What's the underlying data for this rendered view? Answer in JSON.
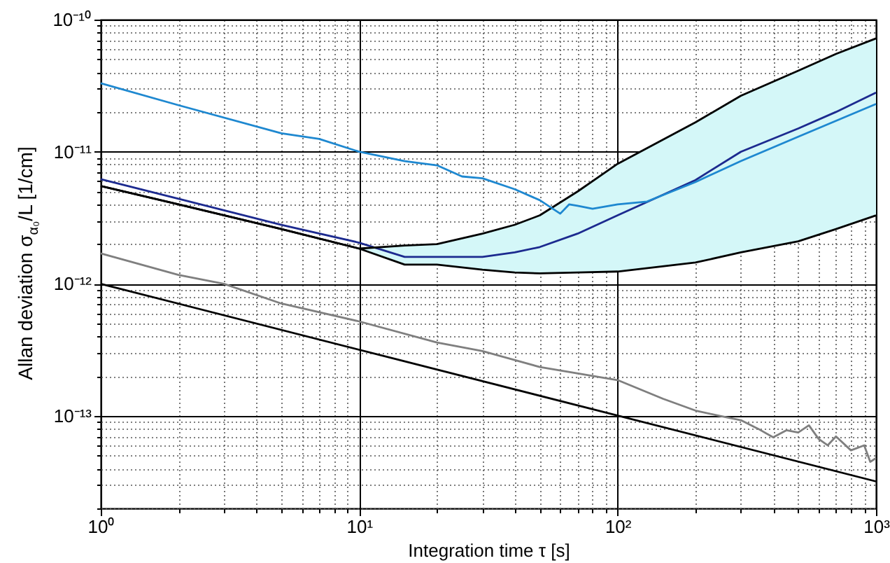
{
  "chart_data": {
    "type": "line",
    "xlabel": "Integration time τ [s]",
    "ylabel": "Allan deviation σ$_{α₀}$/L [1/cm]",
    "log": "xy",
    "grid": true,
    "xlim": [
      1,
      1000
    ],
    "ylim": [
      2e-14,
      1e-10
    ],
    "xticks": [
      {
        "value": 1,
        "label": "10⁰"
      },
      {
        "value": 2,
        "label": null
      },
      {
        "value": 3,
        "label": null
      },
      {
        "value": 4,
        "label": null
      },
      {
        "value": 5,
        "label": null
      },
      {
        "value": 6,
        "label": null
      },
      {
        "value": 7,
        "label": null
      },
      {
        "value": 8,
        "label": null
      },
      {
        "value": 9,
        "label": null
      },
      {
        "value": 10,
        "label": "10¹"
      },
      {
        "value": 20,
        "label": null
      },
      {
        "value": 30,
        "label": null
      },
      {
        "value": 40,
        "label": null
      },
      {
        "value": 50,
        "label": null
      },
      {
        "value": 60,
        "label": null
      },
      {
        "value": 70,
        "label": null
      },
      {
        "value": 80,
        "label": null
      },
      {
        "value": 90,
        "label": null
      },
      {
        "value": 100,
        "label": "10²"
      },
      {
        "value": 200,
        "label": null
      },
      {
        "value": 300,
        "label": null
      },
      {
        "value": 400,
        "label": null
      },
      {
        "value": 500,
        "label": null
      },
      {
        "value": 600,
        "label": null
      },
      {
        "value": 700,
        "label": null
      },
      {
        "value": 800,
        "label": null
      },
      {
        "value": 900,
        "label": null
      },
      {
        "value": 1000,
        "label": "10³"
      }
    ],
    "yticks": [
      {
        "value": 2e-14,
        "label": null
      },
      {
        "value": 3e-14,
        "label": null
      },
      {
        "value": 4e-14,
        "label": null
      },
      {
        "value": 5e-14,
        "label": null
      },
      {
        "value": 6e-14,
        "label": null
      },
      {
        "value": 7e-14,
        "label": null
      },
      {
        "value": 8e-14,
        "label": null
      },
      {
        "value": 9e-14,
        "label": null
      },
      {
        "value": 1e-13,
        "label": "10⁻¹³"
      },
      {
        "value": 2e-13,
        "label": null
      },
      {
        "value": 3e-13,
        "label": null
      },
      {
        "value": 4e-13,
        "label": null
      },
      {
        "value": 5e-13,
        "label": null
      },
      {
        "value": 6e-13,
        "label": null
      },
      {
        "value": 7e-13,
        "label": null
      },
      {
        "value": 8e-13,
        "label": null
      },
      {
        "value": 9e-13,
        "label": null
      },
      {
        "value": 1e-12,
        "label": "10⁻¹²"
      },
      {
        "value": 2e-12,
        "label": null
      },
      {
        "value": 3e-12,
        "label": null
      },
      {
        "value": 4e-12,
        "label": null
      },
      {
        "value": 5e-12,
        "label": null
      },
      {
        "value": 6e-12,
        "label": null
      },
      {
        "value": 7e-12,
        "label": null
      },
      {
        "value": 8e-12,
        "label": null
      },
      {
        "value": 9e-12,
        "label": null
      },
      {
        "value": 1e-11,
        "label": "10⁻¹¹"
      },
      {
        "value": 2e-11,
        "label": null
      },
      {
        "value": 3e-11,
        "label": null
      },
      {
        "value": 4e-11,
        "label": null
      },
      {
        "value": 5e-11,
        "label": null
      },
      {
        "value": 6e-11,
        "label": null
      },
      {
        "value": 7e-11,
        "label": null
      },
      {
        "value": 8e-11,
        "label": null
      },
      {
        "value": 9e-11,
        "label": null
      },
      {
        "value": 1e-10,
        "label": "10⁻¹⁰"
      }
    ],
    "series": [
      {
        "color": "#1c2a8f",
        "x": [
          1,
          2,
          5,
          10,
          15,
          20,
          30,
          40,
          50,
          70,
          100,
          200,
          300,
          500,
          700,
          1000
        ],
        "values": [
          6.2e-12,
          4.4e-12,
          2.8e-12,
          2.05e-12,
          1.6e-12,
          1.6e-12,
          1.6e-12,
          1.73e-12,
          1.9e-12,
          2.4e-12,
          3.3e-12,
          6.1e-12,
          1e-11,
          1.5e-11,
          2e-11,
          2.8e-11
        ],
        "lower": [
          5.5e-12,
          4e-12,
          2.6e-12,
          1.85e-12,
          1.4e-12,
          1.4e-12,
          1.28e-12,
          1.22e-12,
          1.2e-12,
          1.22e-12,
          1.24e-12,
          1.45e-12,
          1.73e-12,
          2.1e-12,
          2.6e-12,
          3.3e-12
        ],
        "upper": [
          5.5e-12,
          4e-12,
          2.6e-12,
          1.85e-12,
          1.95e-12,
          2e-12,
          2.4e-12,
          2.8e-12,
          3.3e-12,
          5e-12,
          8.1e-12,
          1.67e-11,
          2.65e-11,
          4.1e-11,
          5.5e-11,
          7.2e-11
        ]
      },
      {
        "color": "#000000",
        "x": [
          1,
          2,
          5,
          10,
          15,
          20,
          30,
          40,
          50,
          70,
          100,
          200,
          300,
          500,
          700,
          1000
        ],
        "values": [
          5.5e-12,
          4e-12,
          2.6e-12,
          1.85e-12,
          1.95e-12,
          2e-12,
          2.4e-12,
          2.8e-12,
          3.3e-12,
          5e-12,
          8.1e-12,
          1.67e-11,
          2.65e-11,
          4.1e-11,
          5.5e-11,
          7.2e-11
        ]
      },
      {
        "color": "#000000",
        "x": [
          1,
          2,
          5,
          10,
          15,
          20,
          30,
          40,
          50,
          70,
          100,
          200,
          300,
          500,
          700,
          1000
        ],
        "values": [
          5.5e-12,
          4e-12,
          2.6e-12,
          1.85e-12,
          1.4e-12,
          1.4e-12,
          1.28e-12,
          1.22e-12,
          1.2e-12,
          1.22e-12,
          1.24e-12,
          1.45e-12,
          1.73e-12,
          2.1e-12,
          2.6e-12,
          3.3e-12
        ]
      },
      {
        "color": "#1e88d0",
        "x": [
          1,
          2,
          5,
          7,
          10,
          15,
          20,
          25,
          30,
          40,
          50,
          60,
          65,
          70,
          80,
          100,
          130,
          200,
          300,
          500,
          1000
        ],
        "values": [
          3.3e-11,
          2.25e-11,
          1.38e-11,
          1.25e-11,
          1e-11,
          8.5e-12,
          7.9e-12,
          6.5e-12,
          6.3e-12,
          5.2e-12,
          4.3e-12,
          3.4e-12,
          4e-12,
          3.9e-12,
          3.7e-12,
          4e-12,
          4.2e-12,
          5.9e-12,
          8.5e-12,
          1.3e-11,
          2.3e-11
        ]
      },
      {
        "color": "#7f7f7f",
        "x": [
          1,
          2,
          3,
          5,
          10,
          20,
          30,
          50,
          100,
          150,
          200,
          250,
          300,
          350,
          400,
          450,
          500,
          550,
          600,
          650,
          700,
          800,
          900,
          950,
          1000
        ],
        "values": [
          1.7e-12,
          1.17e-12,
          1e-12,
          7.1e-13,
          5.2e-13,
          3.6e-13,
          3.1e-13,
          2.35e-13,
          1.87e-13,
          1.35e-13,
          1.1e-13,
          1e-13,
          9.3e-14,
          8e-14,
          6.9e-14,
          7.8e-14,
          7.5e-14,
          8.5e-14,
          6.7e-14,
          6e-14,
          7e-14,
          5.5e-14,
          6e-14,
          4.5e-14,
          4.8e-14
        ]
      },
      {
        "color": "#000000",
        "x": [
          1,
          1000
        ],
        "values": [
          1e-12,
          3.2e-14
        ]
      }
    ]
  }
}
